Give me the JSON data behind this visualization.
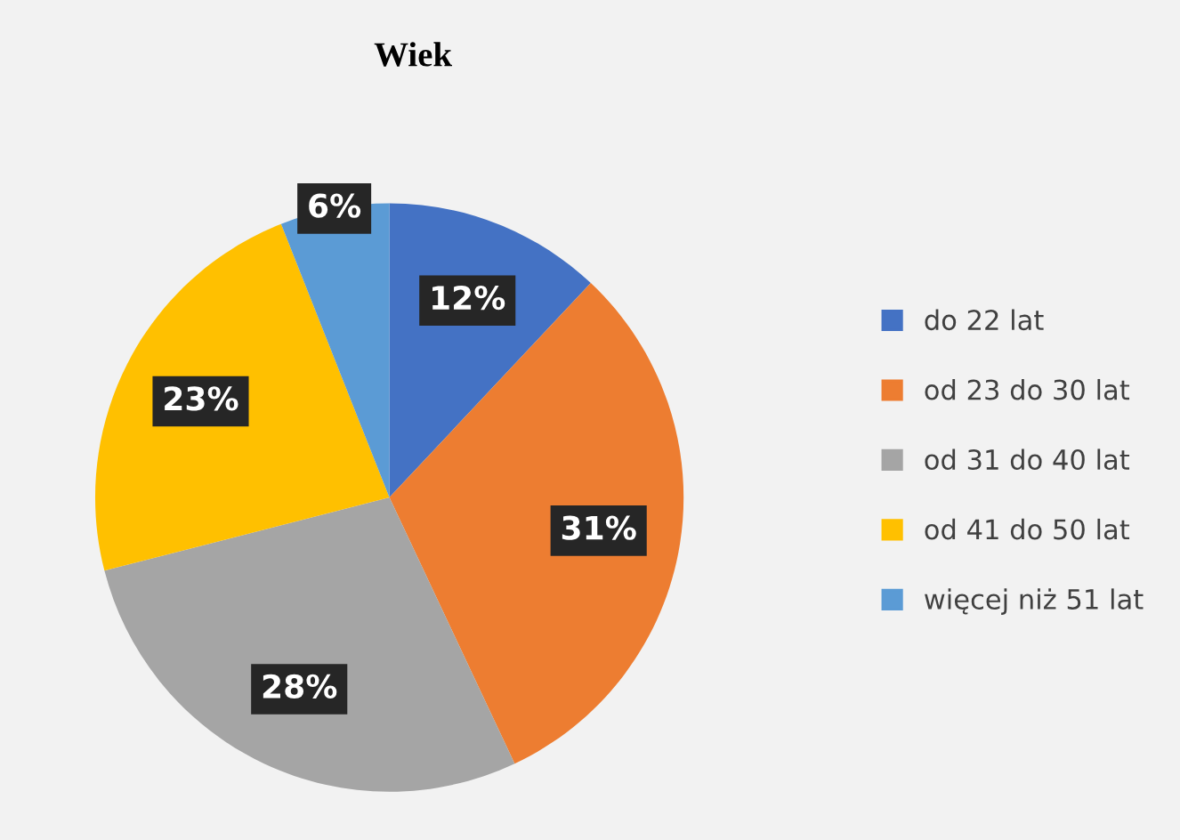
{
  "chart_data": {
    "type": "pie",
    "title": "Wiek",
    "categories": [
      "do 22 lat",
      "od 23 do 30 lat",
      "od 31 do 40 lat",
      "od 41 do 50 lat",
      "więcej niż 51 lat"
    ],
    "values": [
      12,
      31,
      28,
      23,
      6
    ],
    "colors": [
      "#4472c4",
      "#ed7d31",
      "#a5a5a5",
      "#ffc000",
      "#5b9bd5"
    ],
    "value_labels": [
      "12%",
      "31%",
      "28%",
      "23%",
      "6%"
    ],
    "legend": "right"
  }
}
